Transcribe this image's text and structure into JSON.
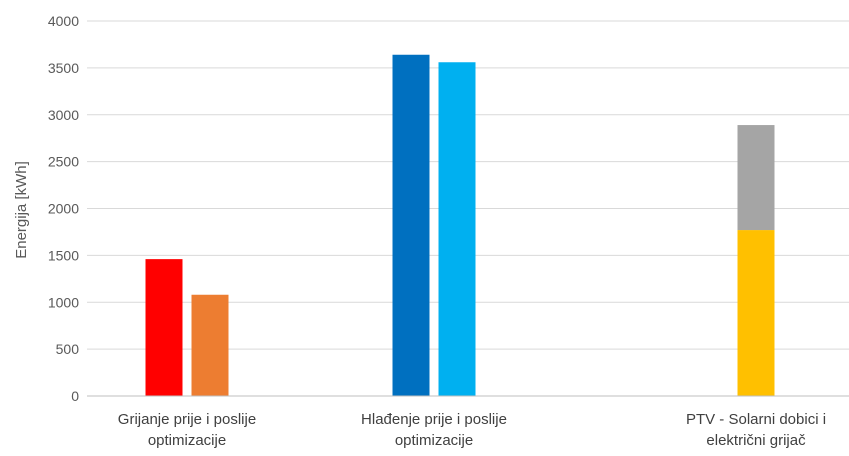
{
  "chart_data": {
    "type": "bar",
    "ylabel": "Energija [kWh]",
    "ylim": [
      0,
      4000
    ],
    "yticks": [
      0,
      500,
      1000,
      1500,
      2000,
      2500,
      3000,
      3500,
      4000
    ],
    "grid": true,
    "categories": [
      {
        "lines": [
          "Grijanje prije i poslije",
          "optimizacije"
        ]
      },
      {
        "lines": [
          "Hlađenje prije i poslije",
          "optimizacije"
        ]
      },
      {
        "lines": [
          "PTV - Solarni dobici i",
          "električni grijač"
        ]
      }
    ],
    "groups": [
      {
        "category": 0,
        "bars": [
          {
            "segments": [
              {
                "value": 1460,
                "color": "#ff0000"
              }
            ]
          },
          {
            "segments": [
              {
                "value": 1080,
                "color": "#ed7d31"
              }
            ]
          }
        ]
      },
      {
        "category": 1,
        "bars": [
          {
            "segments": [
              {
                "value": 3640,
                "color": "#0070c0"
              }
            ]
          },
          {
            "segments": [
              {
                "value": 3560,
                "color": "#00b0f0"
              }
            ]
          }
        ]
      },
      {
        "category": 2,
        "bars": [
          {
            "segments": [
              {
                "value": 1770,
                "color": "#ffc000"
              },
              {
                "value": 1120,
                "color": "#a5a5a5"
              }
            ]
          }
        ]
      }
    ]
  }
}
